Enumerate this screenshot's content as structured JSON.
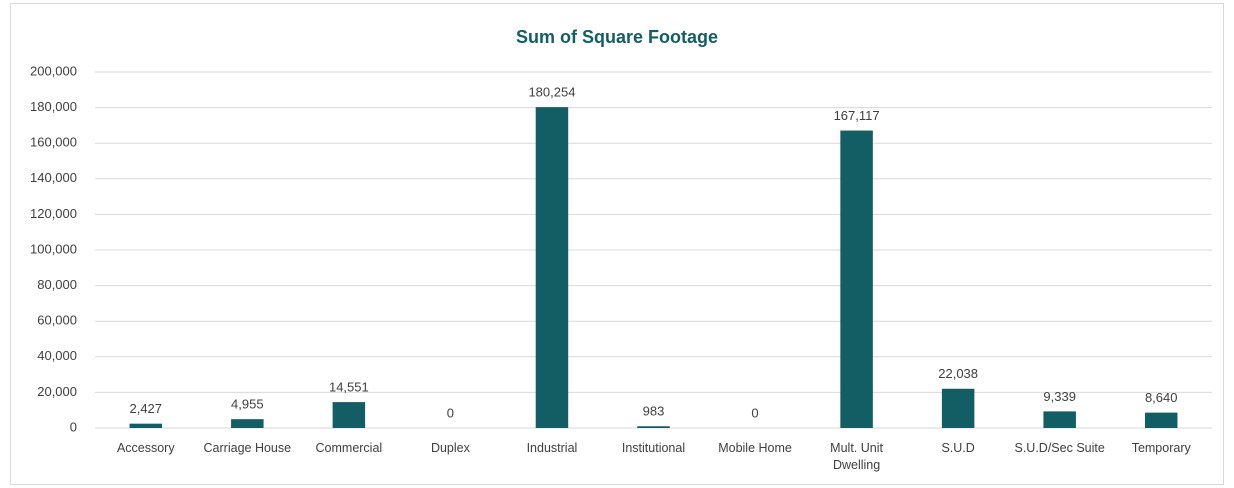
{
  "chart_data": {
    "type": "bar",
    "title": "Sum of Square Footage",
    "categories": [
      "Accessory",
      "Carriage House",
      "Commercial",
      "Duplex",
      "Industrial",
      "Institutional",
      "Mobile Home",
      "Mult. Unit Dwelling",
      "S.U.D",
      "S.U.D/Sec Suite",
      "Temporary"
    ],
    "values": [
      2427,
      4955,
      14551,
      0,
      180254,
      983,
      0,
      167117,
      22038,
      9339,
      8640
    ],
    "value_labels": [
      "2,427",
      "4,955",
      "14,551",
      "0",
      "180,254",
      "983",
      "0",
      "167,117",
      "22,038",
      "9,339",
      "8,640"
    ],
    "color": "#135e64",
    "ylim": [
      0,
      200000
    ],
    "yticks": [
      0,
      {
        "value": 20000,
        "label": "20,000"
      },
      {
        "value": 40000,
        "label": "40,000"
      },
      {
        "value": 60000,
        "label": "60,000"
      },
      {
        "value": 80000,
        "label": "80,000"
      },
      {
        "value": 100000,
        "label": "100,000"
      },
      {
        "value": 120000,
        "label": "120,000"
      },
      {
        "value": 140000,
        "label": "140,000"
      },
      {
        "value": 160000,
        "label": "160,000"
      },
      {
        "value": 180000,
        "label": "180,000"
      },
      {
        "value": 200000,
        "label": "200,000"
      }
    ],
    "grid": true
  }
}
